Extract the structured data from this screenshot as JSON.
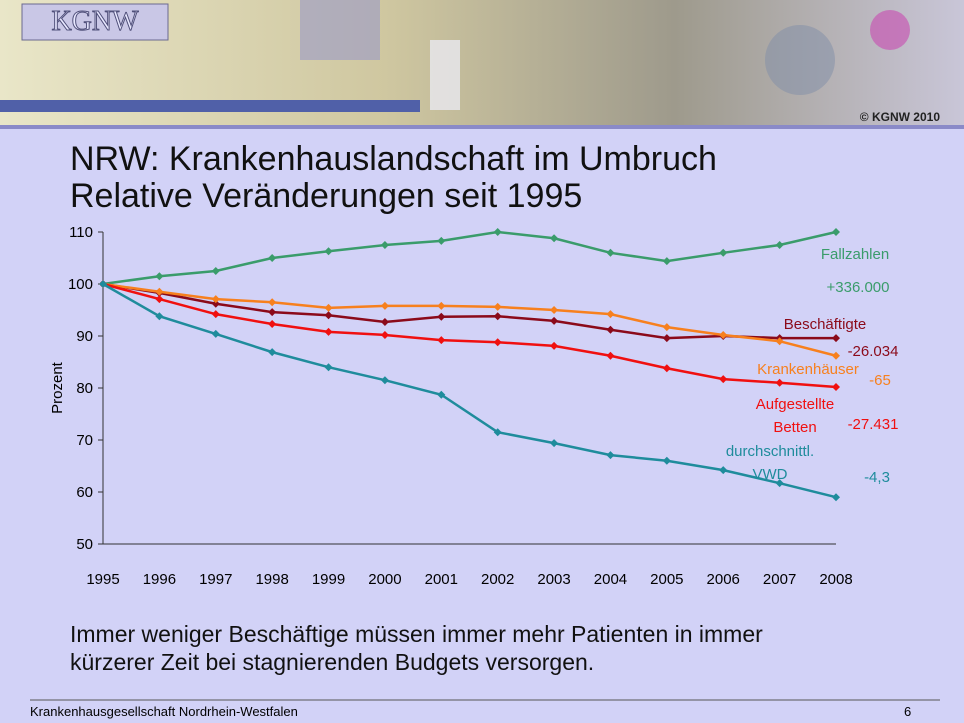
{
  "header": {
    "logo": "KGNW",
    "copyright": "© KGNW 2010"
  },
  "title": [
    "NRW: Krankenhauslandschaft im Umbruch",
    "Relative Veränderungen seit 1995"
  ],
  "body": [
    "Immer weniger Beschäftige müssen immer mehr Patienten in immer",
    "kürzerer Zeit bei stagnierenden Budgets versorgen."
  ],
  "footer": {
    "text": "Krankenhausgesellschaft Nordrhein-Westfalen",
    "page": "6"
  },
  "chart_data": {
    "type": "line",
    "y_label": "Prozent",
    "categories": [
      "1995",
      "1996",
      "1997",
      "1998",
      "1999",
      "2000",
      "2001",
      "2002",
      "2003",
      "2004",
      "2005",
      "2006",
      "2007",
      "2008"
    ],
    "ylim": [
      50,
      110
    ],
    "yticks": [
      50,
      60,
      70,
      80,
      90,
      100,
      110
    ],
    "series": [
      {
        "name": "Fallzahlen",
        "change": "+336.000",
        "color": "#3a9c6b",
        "values": [
          100,
          101.5,
          102.5,
          105,
          106.3,
          107.5,
          108.3,
          110,
          108.8,
          106,
          104.4,
          106,
          107.5,
          110
        ]
      },
      {
        "name": "Beschäftigte",
        "change": "-26.034",
        "color": "#8b0a1a",
        "values": [
          100,
          98.3,
          96.2,
          94.6,
          94,
          92.7,
          93.7,
          93.8,
          92.9,
          91.2,
          89.6,
          90,
          89.6,
          89.6
        ]
      },
      {
        "name": "Krankenhäuser",
        "change": "-65",
        "color": "#f7801e",
        "values": [
          100,
          98.5,
          97.1,
          96.5,
          95.4,
          95.8,
          95.8,
          95.6,
          95,
          94.2,
          91.7,
          90.2,
          89,
          86.2
        ]
      },
      {
        "name": "Aufgestellte Betten",
        "change": "-27.431",
        "color": "#f01010",
        "values": [
          100,
          97.1,
          94.2,
          92.3,
          90.8,
          90.2,
          89.2,
          88.8,
          88.1,
          86.2,
          83.8,
          81.7,
          81,
          80.2
        ]
      },
      {
        "name": "durchschnittl. VWD",
        "change": "-4,3",
        "color": "#1f8c9c",
        "values": [
          100,
          93.8,
          90.4,
          86.9,
          84,
          81.5,
          78.7,
          71.5,
          69.4,
          67.1,
          66,
          64.2,
          61.7,
          59
        ]
      }
    ]
  }
}
